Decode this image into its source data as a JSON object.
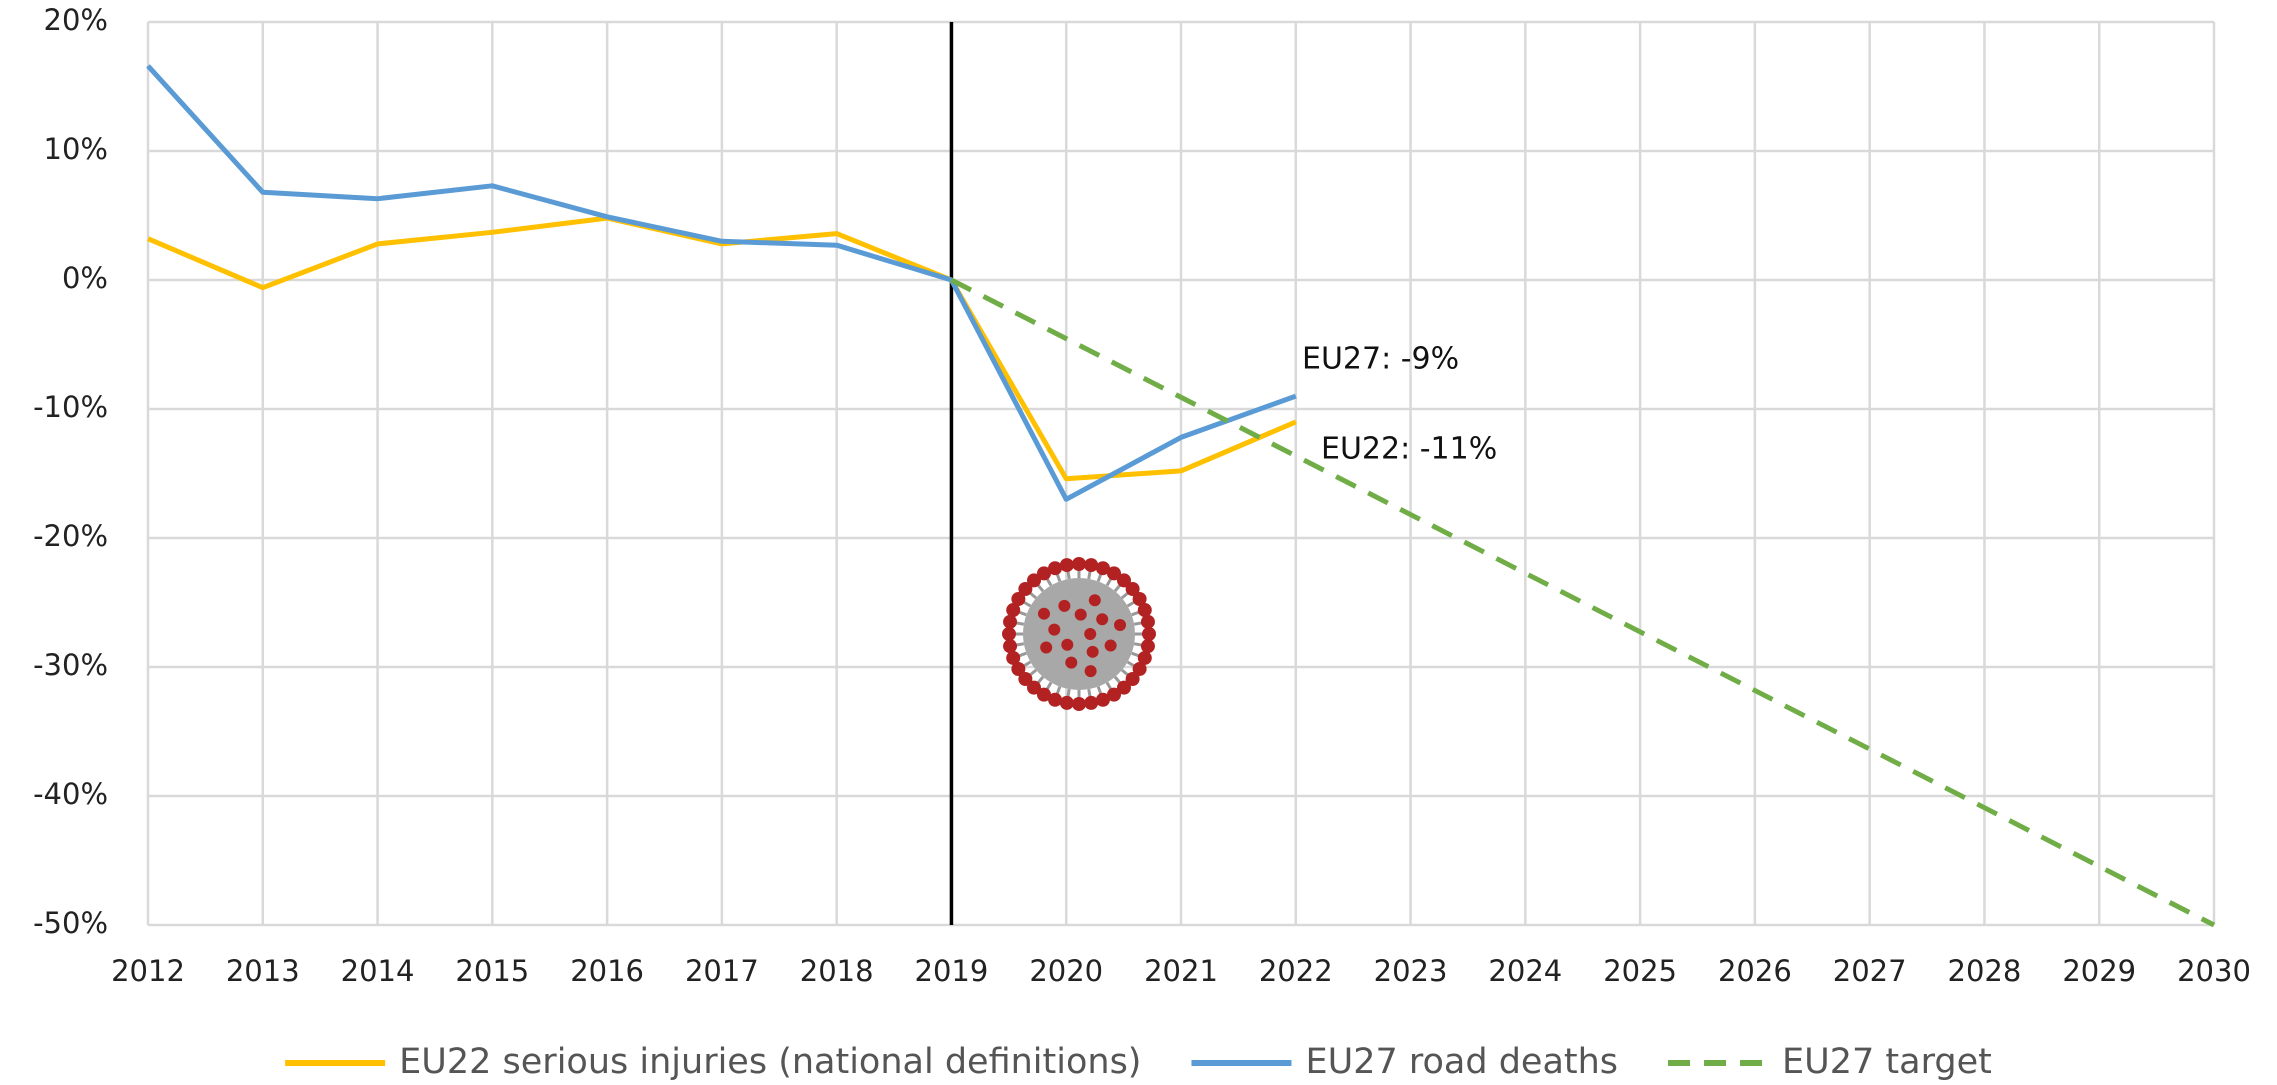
{
  "chart_data": {
    "type": "line",
    "xlim": [
      2012,
      2030
    ],
    "xticks": [
      2012,
      2013,
      2014,
      2015,
      2016,
      2017,
      2018,
      2019,
      2020,
      2021,
      2022,
      2023,
      2024,
      2025,
      2026,
      2027,
      2028,
      2029,
      2030
    ],
    "ylim": [
      -50,
      20
    ],
    "yticks": [
      {
        "value": -50,
        "label": "-50%"
      },
      {
        "value": -40,
        "label": "-40%"
      },
      {
        "value": -30,
        "label": "-30%"
      },
      {
        "value": -20,
        "label": "-20%"
      },
      {
        "value": -10,
        "label": "-10%"
      },
      {
        "value": 0,
        "label": "0%"
      },
      {
        "value": 10,
        "label": "10%"
      },
      {
        "value": 20,
        "label": "20%"
      }
    ],
    "grid": true,
    "legend": "bottom",
    "series": [
      {
        "name": "EU22 serious injuries (national definitions)",
        "color": "#ffc000",
        "dash": false,
        "x": [
          2012,
          2013,
          2014,
          2015,
          2016,
          2017,
          2018,
          2019,
          2020,
          2021,
          2022
        ],
        "values": [
          3.2,
          -0.6,
          2.8,
          3.7,
          4.8,
          2.8,
          3.6,
          0,
          -15.4,
          -14.8,
          -11
        ]
      },
      {
        "name": "EU27 road deaths",
        "color": "#5b9bd5",
        "dash": false,
        "x": [
          2012,
          2013,
          2014,
          2015,
          2016,
          2017,
          2018,
          2019,
          2020,
          2021,
          2022
        ],
        "values": [
          16.6,
          6.8,
          6.3,
          7.3,
          4.9,
          3.0,
          2.7,
          0,
          -17,
          -12.2,
          -9
        ]
      },
      {
        "name": "EU27 target",
        "color": "#70ad47",
        "dash": true,
        "x": [
          2019,
          2030
        ],
        "values": [
          0,
          -50
        ]
      }
    ],
    "annotations": [
      "EU27: -9%",
      "EU22: -11%"
    ]
  }
}
